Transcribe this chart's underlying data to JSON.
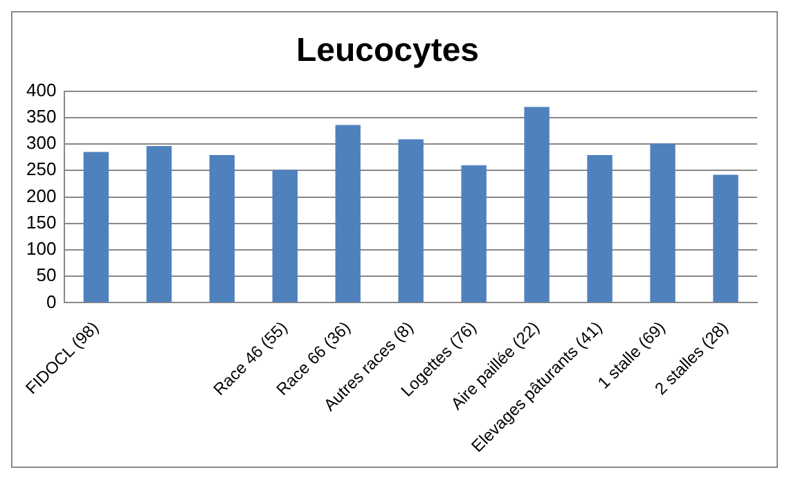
{
  "chart_data": {
    "type": "bar",
    "title": "Leucocytes",
    "categories": [
      "FIDOCL (98)",
      null,
      null,
      "Race 46 (55)",
      "Race 66 (36)",
      "Autres races (8)",
      "Logettes (76)",
      "Aire paillée (22)",
      "Elevages pâturants (41)",
      "1 stalle (69)",
      "2 stalles (28)"
    ],
    "values": [
      285,
      296,
      279,
      251,
      336,
      309,
      260,
      370,
      279,
      301,
      242
    ],
    "color": "#4f81bd",
    "ylim": [
      0,
      400
    ],
    "yticks": [
      0,
      50,
      100,
      150,
      200,
      250,
      300,
      350,
      400
    ],
    "grid": "y",
    "legend": false
  }
}
